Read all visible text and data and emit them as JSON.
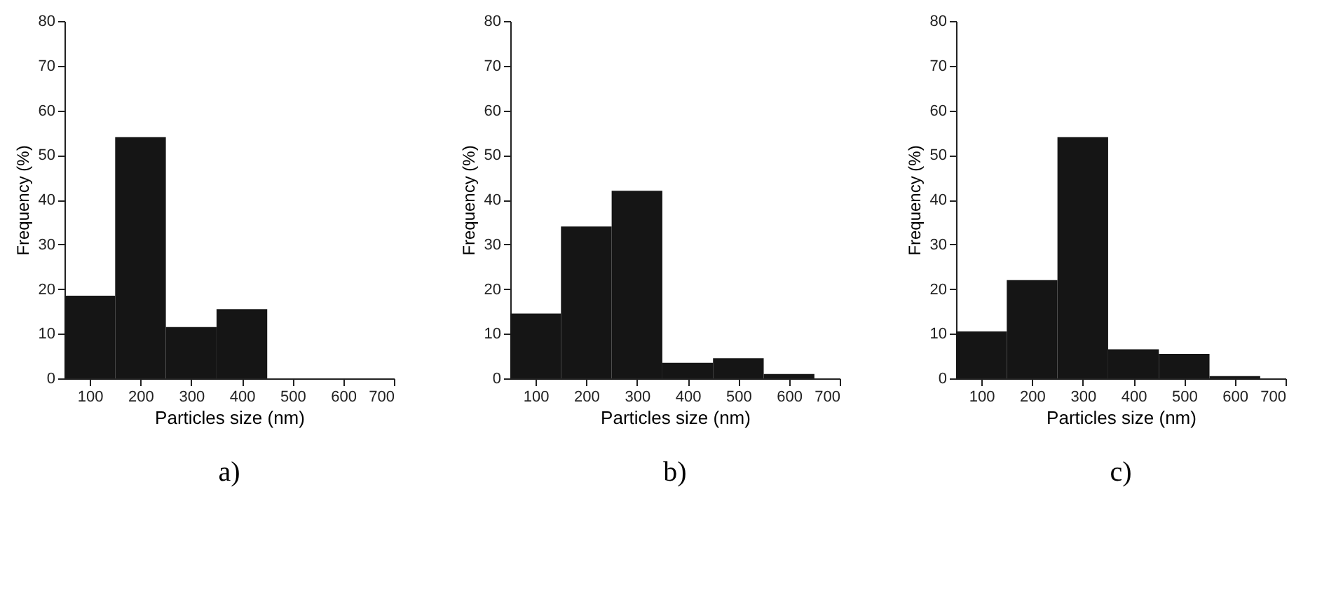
{
  "chart_data": [
    {
      "type": "histogram",
      "title": "a)",
      "xlabel": "Particles size (nm)",
      "ylabel": "Frequency (%)",
      "bins": [
        50,
        150,
        250,
        350,
        450
      ],
      "values": [
        18.5,
        54,
        11.5,
        15.5
      ],
      "color": "#151515",
      "xlim": [
        50,
        700
      ],
      "ylim": [
        0,
        80
      ],
      "xticks": [
        100,
        200,
        300,
        400,
        500,
        600,
        700
      ],
      "yticks": [
        0,
        10,
        20,
        30,
        40,
        50,
        60,
        70,
        80
      ]
    },
    {
      "type": "histogram",
      "title": "b)",
      "xlabel": "Particles size (nm)",
      "ylabel": "Frequency (%)",
      "bins": [
        50,
        150,
        250,
        350,
        450,
        550,
        650
      ],
      "values": [
        14.5,
        34,
        42,
        3.5,
        4.5,
        1
      ],
      "color": "#151515",
      "xlim": [
        50,
        700
      ],
      "ylim": [
        0,
        80
      ],
      "xticks": [
        100,
        200,
        300,
        400,
        500,
        600,
        700
      ],
      "yticks": [
        0,
        10,
        20,
        30,
        40,
        50,
        60,
        70,
        80
      ]
    },
    {
      "type": "histogram",
      "title": "c)",
      "xlabel": "Particles size (nm)",
      "ylabel": "Frequency (%)",
      "bins": [
        50,
        150,
        250,
        350,
        450,
        550,
        650
      ],
      "values": [
        10.5,
        22,
        54,
        6.5,
        5.5,
        0.5
      ],
      "color": "#151515",
      "xlim": [
        50,
        700
      ],
      "ylim": [
        0,
        80
      ],
      "xticks": [
        100,
        200,
        300,
        400,
        500,
        600,
        700
      ],
      "yticks": [
        0,
        10,
        20,
        30,
        40,
        50,
        60,
        70,
        80
      ]
    }
  ]
}
